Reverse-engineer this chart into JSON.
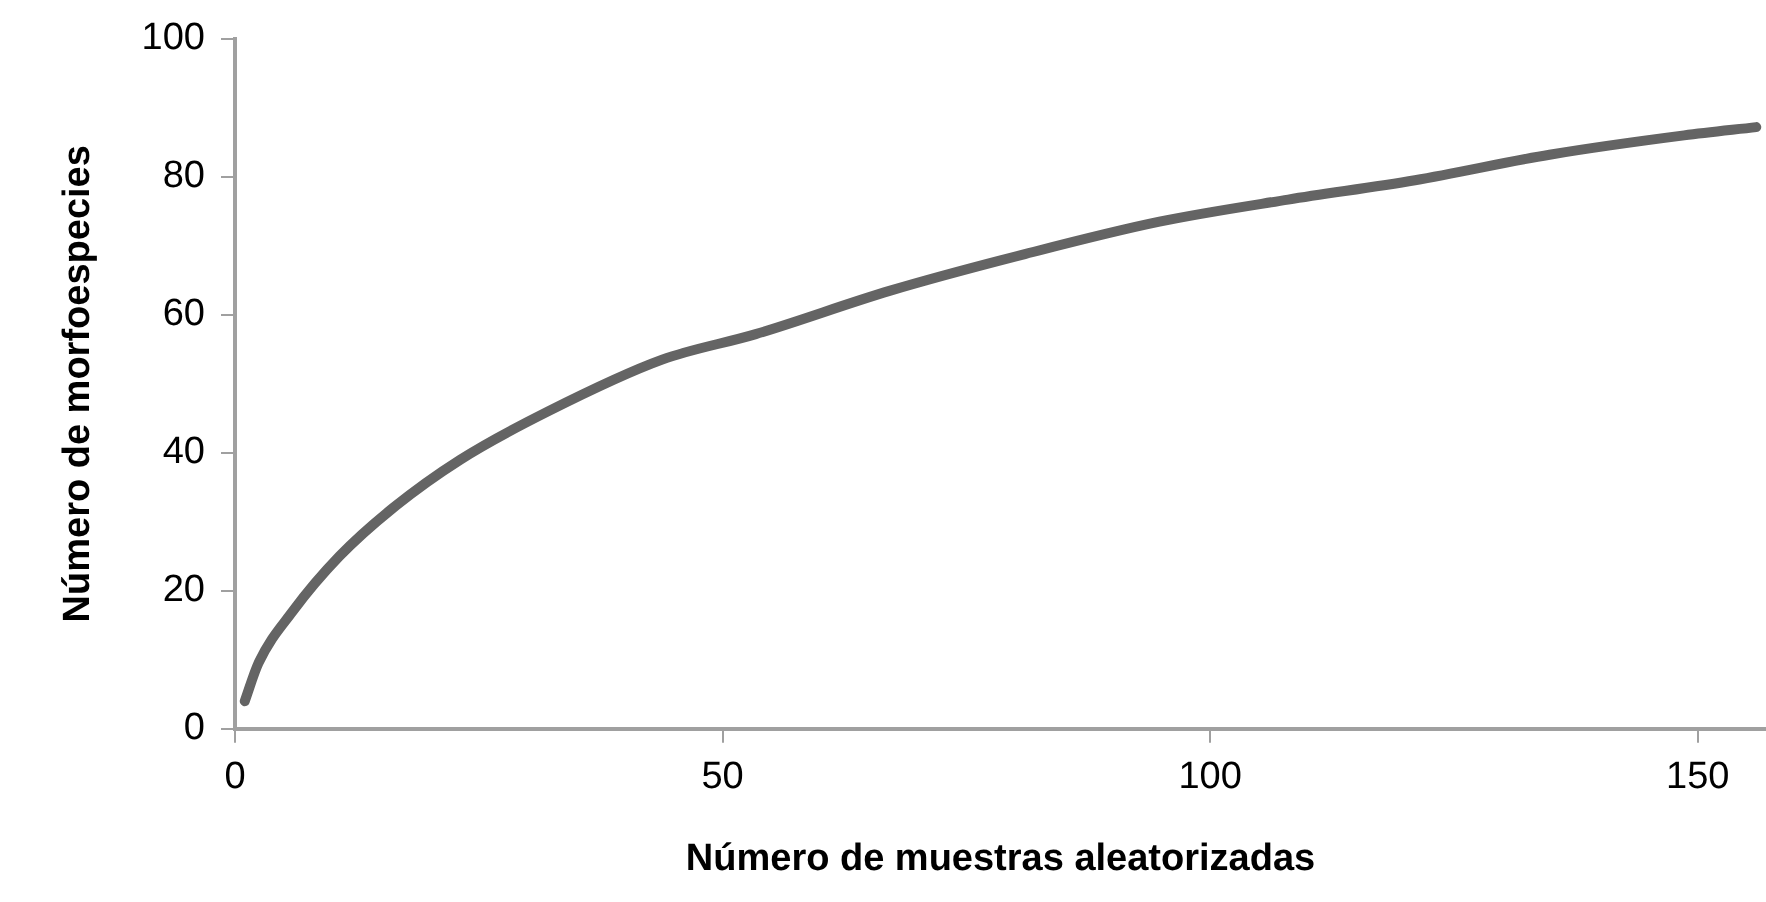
{
  "chart_data": {
    "type": "line",
    "xlabel": "Número de muestras aleatorizadas",
    "ylabel": "Número de morfoespecies",
    "x": [
      1,
      2.4,
      5.9,
      10.7,
      16.2,
      23.1,
      32.1,
      43.8,
      53.4,
      67.2,
      81,
      94.8,
      108,
      121,
      134.8,
      148.6,
      156
    ],
    "series": [
      {
        "color": "#646464",
        "values": [
          4,
          9.5,
          17,
          25,
          32,
          39,
          46,
          53.5,
          57.2,
          63.5,
          68.8,
          73.5,
          76.7,
          79.5,
          83.2,
          86,
          87.2
        ]
      }
    ],
    "xlim": [
      0,
      157
    ],
    "xticks": [
      0,
      50,
      100,
      150
    ],
    "ylim": [
      0,
      100
    ],
    "yticks": [
      0,
      20,
      40,
      60,
      80,
      100
    ],
    "grid": false,
    "legend": false,
    "marker": "none",
    "line_style": "solid"
  }
}
